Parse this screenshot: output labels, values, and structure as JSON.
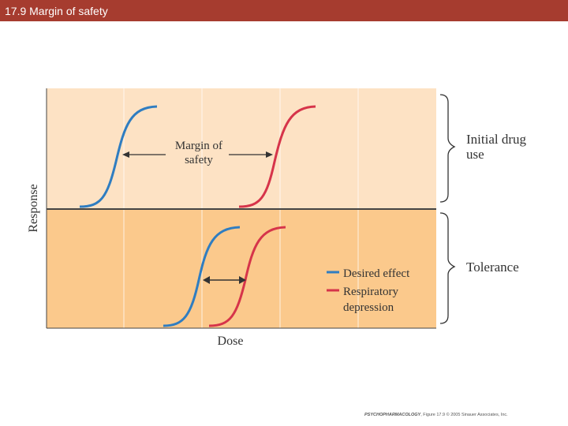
{
  "header": {
    "title": "17.9 Margin of safety"
  },
  "diagram": {
    "y_axis_label": "Response",
    "x_axis_label": "Dose",
    "margin_label_line1": "Margin of",
    "margin_label_line2": "safety",
    "bracket_top_line1": "Initial drug",
    "bracket_top_line2": "use",
    "bracket_bottom": "Tolerance",
    "legend": {
      "desired": "Desired effect",
      "resp_line1": "Respiratory",
      "resp_line2": "depression"
    },
    "colors": {
      "top_panel": "#fde2c4",
      "bottom_panel": "#fbc98c",
      "desired_effect": "#2f7dc1",
      "respiratory_depression": "#d6344a",
      "header": "#a63c2f"
    }
  },
  "credit": {
    "book": "PSYCHOPHARMACOLOGY",
    "rest": ", Figure 17.9 © 2005 Sinauer Associates, Inc."
  }
}
